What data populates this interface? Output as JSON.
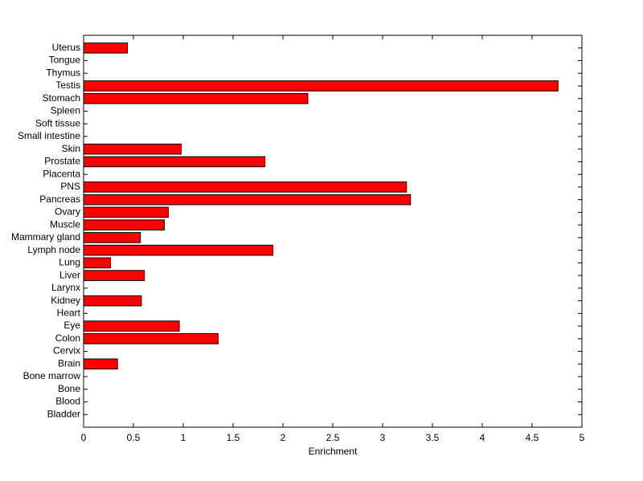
{
  "chart_data": {
    "type": "barh",
    "xlabel": "Enrichment",
    "categories": [
      "Bladder",
      "Blood",
      "Bone",
      "Bone marrow",
      "Brain",
      "Cervix",
      "Colon",
      "Eye",
      "Heart",
      "Kidney",
      "Larynx",
      "Liver",
      "Lung",
      "Lymph node",
      "Mammary gland",
      "Muscle",
      "Ovary",
      "Pancreas",
      "PNS",
      "Placenta",
      "Prostate",
      "Skin",
      "Small intestine",
      "Soft tissue",
      "Spleen",
      "Stomach",
      "Testis",
      "Thymus",
      "Tongue",
      "Uterus"
    ],
    "values": [
      0,
      0,
      0,
      0,
      0.34,
      0,
      1.35,
      0.96,
      0,
      0.58,
      0,
      0.61,
      0.27,
      1.9,
      0.57,
      0.81,
      0.85,
      3.28,
      3.24,
      0,
      1.82,
      0.98,
      0,
      0,
      0,
      2.25,
      4.76,
      0,
      0,
      0.44
    ],
    "color": "#ff0000",
    "xlim": [
      0,
      5
    ],
    "xticks": [
      0,
      0.5,
      1,
      1.5,
      2,
      2.5,
      3,
      3.5,
      4,
      4.5,
      5
    ],
    "grid": false
  }
}
